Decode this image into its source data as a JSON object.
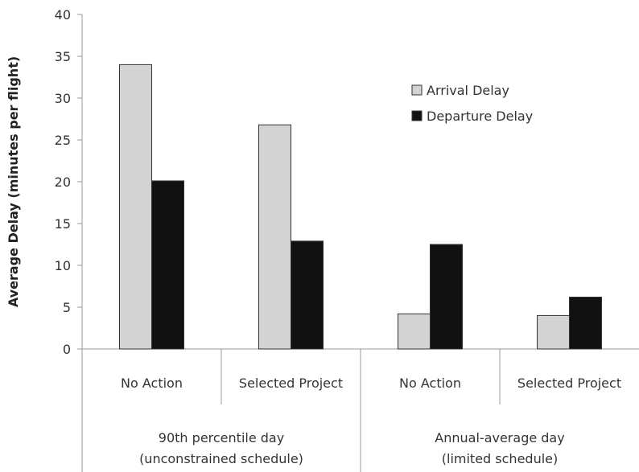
{
  "chart_data": {
    "type": "bar",
    "categories": [
      "No Action",
      "Selected Project",
      "No Action",
      "Selected Project"
    ],
    "groups": [
      {
        "label_line1": "90th percentile day",
        "label_line2": "(unconstrained schedule)",
        "span": [
          0,
          1
        ]
      },
      {
        "label_line1": "Annual-average day",
        "label_line2": "(limited schedule)",
        "span": [
          2,
          3
        ]
      }
    ],
    "series": [
      {
        "name": "Arrival Delay",
        "color": "#d3d3d3",
        "values": [
          34.0,
          26.8,
          4.2,
          4.0
        ]
      },
      {
        "name": "Departure Delay",
        "color": "#111111",
        "values": [
          20.1,
          12.9,
          12.5,
          6.2
        ]
      }
    ],
    "ylabel": "Average Delay (minutes per flight)",
    "ylim": [
      0,
      40
    ],
    "yticks": [
      0,
      5,
      10,
      15,
      20,
      25,
      30,
      35,
      40
    ],
    "legend_position": "top-right",
    "grid": false
  }
}
